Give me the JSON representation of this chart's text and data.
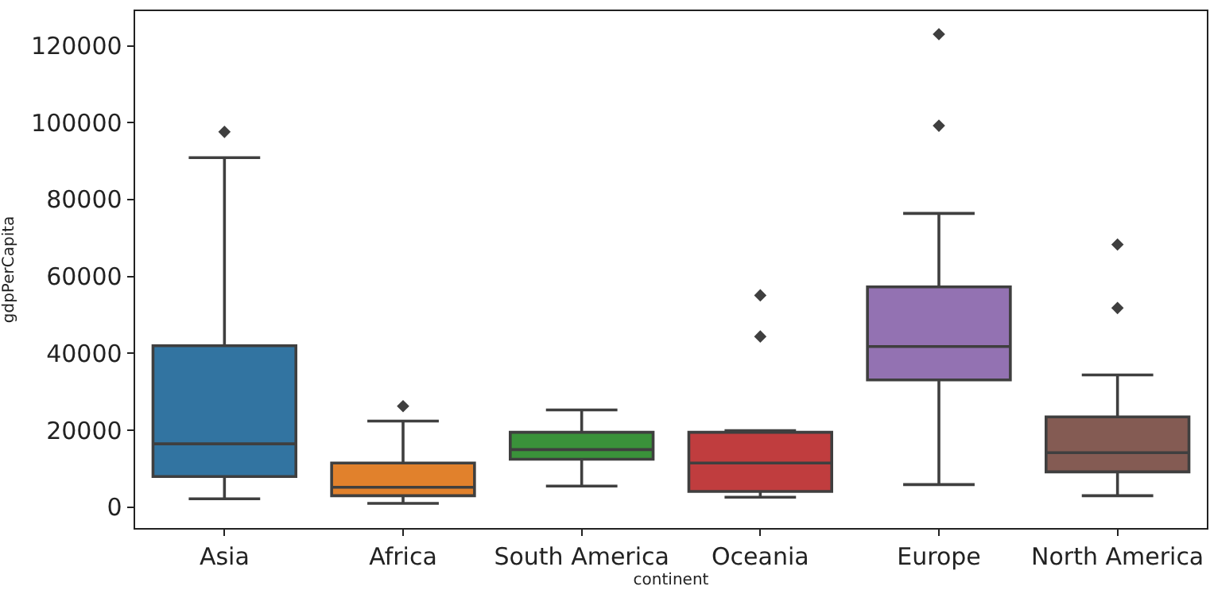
{
  "chart_data": {
    "type": "box",
    "xlabel": "continent",
    "ylabel": "gdpPerCapita",
    "categories": [
      "Asia",
      "Africa",
      "South America",
      "Oceania",
      "Europe",
      "North America"
    ],
    "colors": [
      "#3274a1",
      "#e1812c",
      "#3a923a",
      "#c03d3e",
      "#9372b2",
      "#845b53"
    ],
    "boxes": [
      {
        "low": 2200,
        "q1": 8000,
        "median": 16500,
        "q3": 42000,
        "high": 90900,
        "outliers": [
          97600
        ]
      },
      {
        "low": 1000,
        "q1": 3000,
        "median": 5200,
        "q3": 11500,
        "high": 22400,
        "outliers": [
          26300
        ]
      },
      {
        "low": 5500,
        "q1": 12500,
        "median": 15000,
        "q3": 19500,
        "high": 25300
      },
      {
        "low": 2600,
        "q1": 4100,
        "median": 11500,
        "q3": 19500,
        "high": 19900,
        "outliers": [
          55100,
          44400
        ]
      },
      {
        "low": 5900,
        "q1": 33100,
        "median": 41800,
        "q3": 57300,
        "high": 76400,
        "outliers": [
          123000,
          99200
        ]
      },
      {
        "low": 3000,
        "q1": 9200,
        "median": 14200,
        "q3": 23500,
        "high": 34400,
        "outliers": [
          68300,
          51800
        ]
      }
    ],
    "marker": "diamond",
    "ylim": [
      -5400,
      129000
    ],
    "yticks": [
      0,
      20000,
      40000,
      60000,
      80000,
      100000,
      120000
    ],
    "grid": false
  }
}
